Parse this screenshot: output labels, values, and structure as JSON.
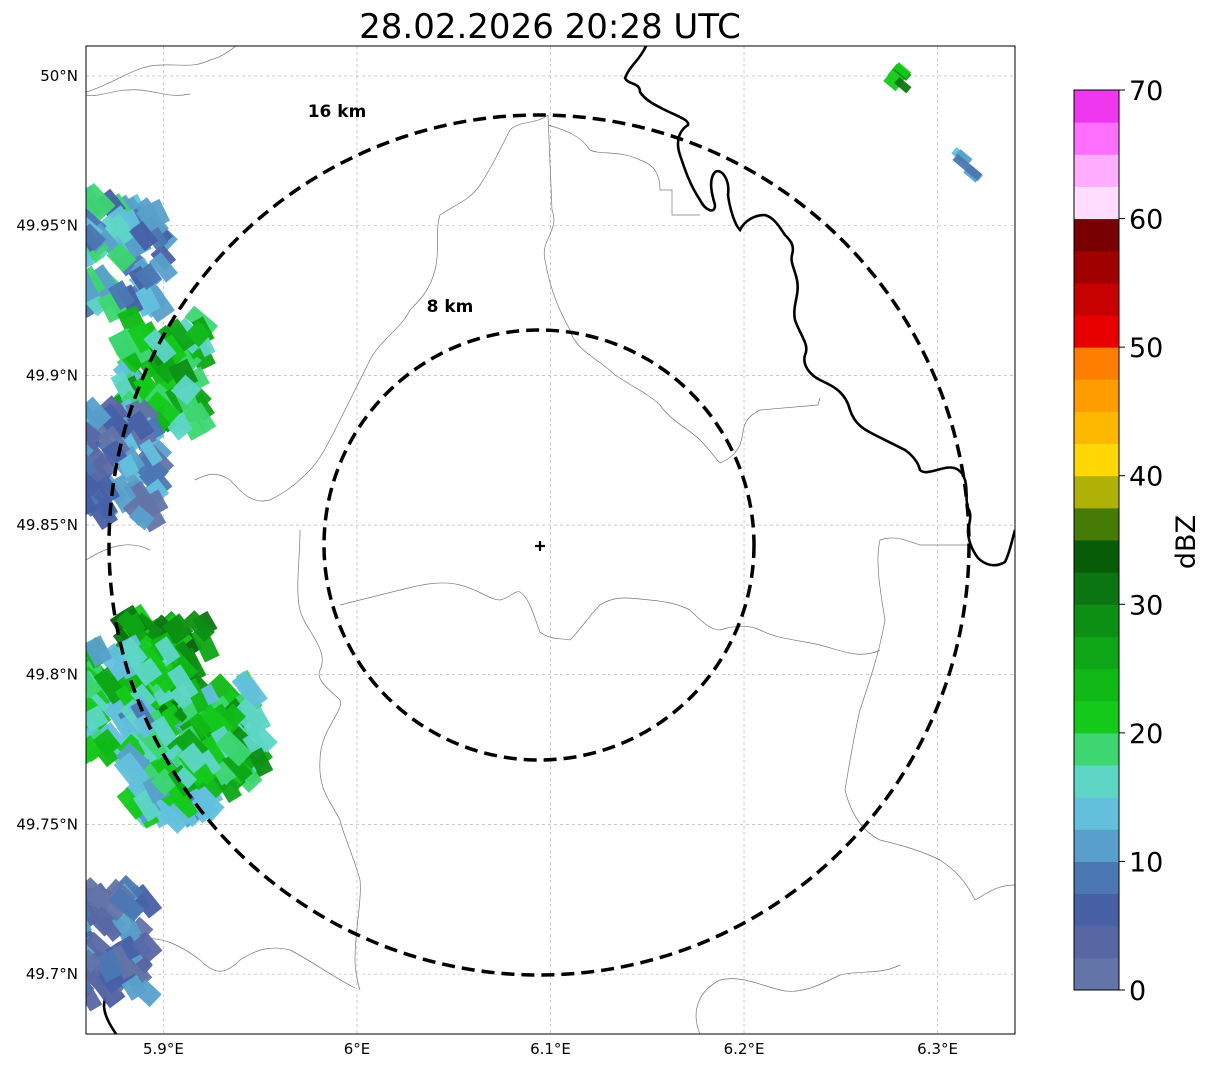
{
  "chart_data": {
    "type": "radar_reflectivity_map",
    "title": "28.02.2026 20:28 UTC",
    "xlim": [
      5.86,
      6.34
    ],
    "ylim": [
      49.68,
      50.01
    ],
    "x_ticks": [
      {
        "value": 5.9,
        "label": "5.9°E"
      },
      {
        "value": 6.0,
        "label": "6°E"
      },
      {
        "value": 6.1,
        "label": "6.1°E"
      },
      {
        "value": 6.2,
        "label": "6.2°E"
      },
      {
        "value": 6.3,
        "label": "6.3°E"
      }
    ],
    "y_ticks": [
      {
        "value": 49.7,
        "label": "49.7°N"
      },
      {
        "value": 49.75,
        "label": "49.75°N"
      },
      {
        "value": 49.8,
        "label": "49.8°N"
      },
      {
        "value": 49.85,
        "label": "49.85°N"
      },
      {
        "value": 49.9,
        "label": "49.9°N"
      },
      {
        "value": 49.95,
        "label": "49.95°N"
      },
      {
        "value": 50.0,
        "label": "50°N"
      }
    ],
    "grid": true,
    "radar_site": {
      "lon": 6.095,
      "lat": 49.843
    },
    "range_rings": [
      {
        "radius_km": 8,
        "label": "8 km",
        "label_lon": 6.033,
        "label_lat": 49.923
      },
      {
        "radius_km": 16,
        "label": "16 km",
        "label_lon": 5.972,
        "label_lat": 49.988
      }
    ],
    "colorbar": {
      "label": "dBZ",
      "min": 0,
      "max": 70,
      "step": 2.5,
      "tick_values": [
        0,
        10,
        20,
        30,
        40,
        50,
        60,
        70
      ],
      "tick_labels": [
        "0",
        "10",
        "20",
        "30",
        "40",
        "50",
        "60",
        "70"
      ],
      "colors": [
        "#6374a8",
        "#5867a4",
        "#4760a6",
        "#4b77b2",
        "#58a0cb",
        "#63c0dd",
        "#5ed6c6",
        "#3dd671",
        "#14c91a",
        "#10b815",
        "#0ea516",
        "#0d8f13",
        "#0b7611",
        "#065c07",
        "#467a06",
        "#b0b106",
        "#fed704",
        "#ffb800",
        "#ff9c00",
        "#ff7e00",
        "#e80000",
        "#c70000",
        "#a00000",
        "#780000",
        "#ffddff",
        "#ffaeff",
        "#ff6fff",
        "#ef37ef"
      ]
    },
    "echo_cells": [
      {
        "lon": 5.88,
        "lat": 49.94,
        "dbz": 14
      },
      {
        "lon": 5.9,
        "lat": 49.9,
        "dbz": 22
      },
      {
        "lon": 5.875,
        "lat": 49.87,
        "dbz": 8
      },
      {
        "lon": 5.9,
        "lat": 49.8,
        "dbz": 27
      },
      {
        "lon": 5.88,
        "lat": 49.79,
        "dbz": 20
      },
      {
        "lon": 5.905,
        "lat": 49.77,
        "dbz": 16
      },
      {
        "lon": 5.93,
        "lat": 49.78,
        "dbz": 22
      },
      {
        "lon": 5.87,
        "lat": 49.71,
        "dbz": 6
      },
      {
        "lon": 6.28,
        "lat": 50.0,
        "dbz": 25
      },
      {
        "lon": 6.315,
        "lat": 49.97,
        "dbz": 8
      }
    ],
    "borders": "country border (bold) and regional boundaries (thin)"
  }
}
